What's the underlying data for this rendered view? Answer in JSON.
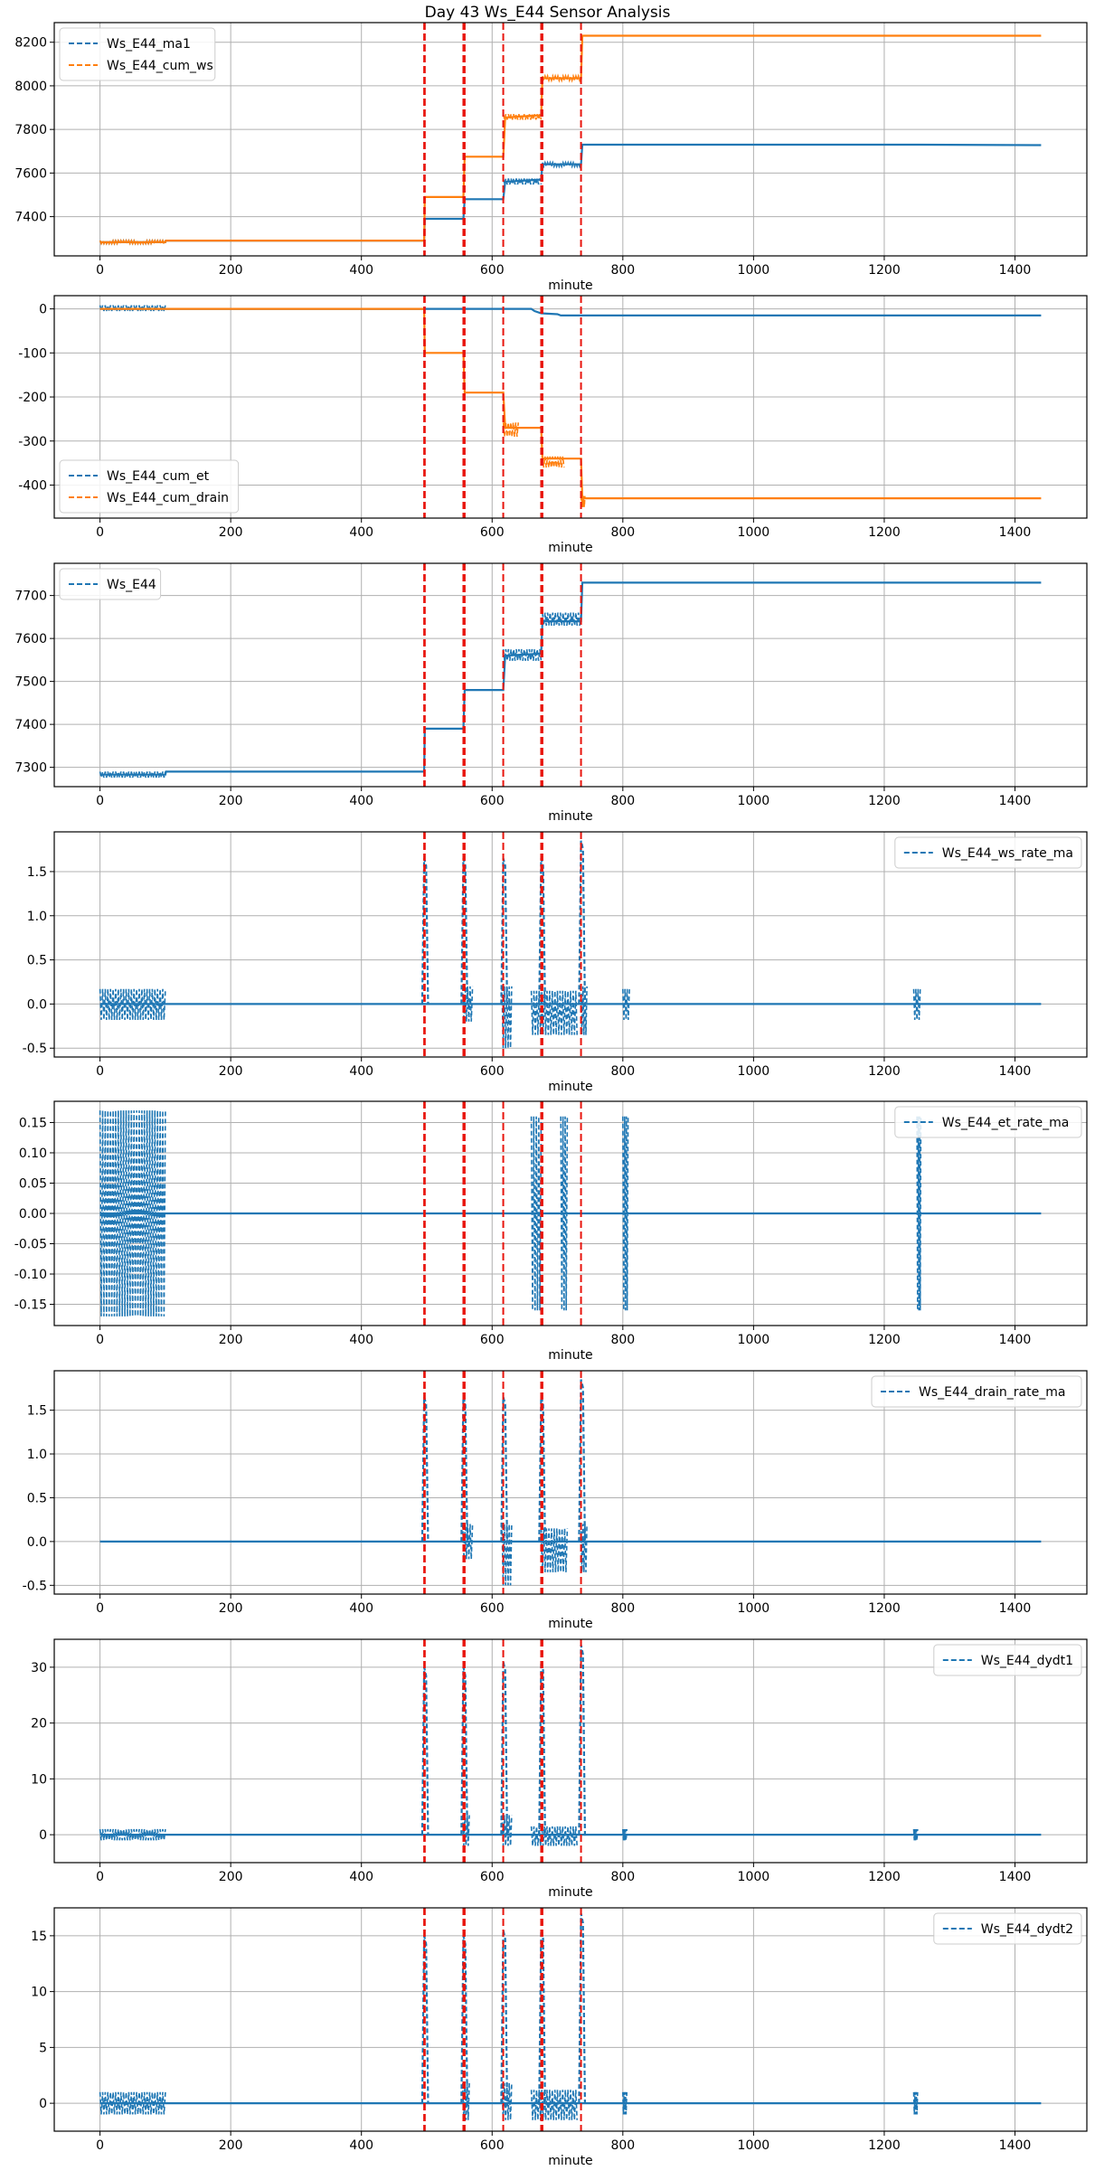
{
  "figure": {
    "title": "Day 43 Ws_E44 Sensor Analysis"
  },
  "colors": {
    "blue": "#1f77b4",
    "orange": "#ff7f0e",
    "event_red": "#e8140c",
    "grid": "#b0b0b0"
  },
  "event_lines_minute": [
    496,
    497,
    556,
    558,
    617,
    675,
    677,
    736
  ],
  "chart_data": [
    {
      "type": "line",
      "xlabel": "minute",
      "xlim": [
        -70,
        1510
      ],
      "ylim": [
        7220,
        8290
      ],
      "yticks": [
        7400,
        7600,
        7800,
        8000,
        8200
      ],
      "xticks": [
        0,
        200,
        400,
        600,
        800,
        1000,
        1200,
        1400
      ],
      "grid": true,
      "legend_loc": "upper left",
      "series": [
        {
          "name": "Ws_E44_ma1",
          "color": "#1f77b4",
          "x": [
            0,
            100,
            101,
            496,
            497,
            556,
            558,
            617,
            620,
            675,
            677,
            736,
            738,
            800,
            1245,
            1440
          ],
          "y": [
            7283,
            7283,
            7290,
            7290,
            7390,
            7390,
            7480,
            7480,
            7560,
            7570,
            7640,
            7640,
            7730,
            7730,
            7730,
            7728
          ],
          "noise": [
            [
              0,
              100,
              7276,
              7290
            ],
            [
              617,
              675,
              7548,
              7575
            ],
            [
              677,
              736,
              7630,
              7648
            ]
          ]
        },
        {
          "name": "Ws_E44_cum_ws",
          "color": "#ff7f0e",
          "x": [
            0,
            100,
            101,
            496,
            497,
            556,
            558,
            617,
            620,
            675,
            677,
            736,
            738,
            1440
          ],
          "y": [
            7283,
            7283,
            7290,
            7290,
            7490,
            7490,
            7675,
            7675,
            7855,
            7865,
            8035,
            8035,
            8230,
            8230
          ],
          "noise": [
            [
              0,
              100,
              7276,
              7290
            ],
            [
              617,
              675,
              7845,
              7870
            ],
            [
              677,
              736,
              8025,
              8045
            ]
          ]
        }
      ]
    },
    {
      "type": "line",
      "xlabel": "minute",
      "xlim": [
        -70,
        1510
      ],
      "ylim": [
        -475,
        30
      ],
      "yticks": [
        0,
        -100,
        -200,
        -300,
        -400
      ],
      "xticks": [
        0,
        200,
        400,
        600,
        800,
        1000,
        1200,
        1400
      ],
      "grid": true,
      "legend_loc": "lower left",
      "series": [
        {
          "name": "Ws_E44_cum_et",
          "color": "#1f77b4",
          "x": [
            0,
            100,
            101,
            660,
            665,
            675,
            700,
            705,
            736,
            740,
            1440
          ],
          "y": [
            0,
            0,
            0,
            0,
            -5,
            -10,
            -12,
            -15,
            -15,
            -15,
            -15
          ],
          "noise": [
            [
              0,
              100,
              -5,
              8
            ]
          ]
        },
        {
          "name": "Ws_E44_cum_drain",
          "color": "#ff7f0e",
          "x": [
            0,
            496,
            497,
            556,
            558,
            617,
            620,
            675,
            677,
            736,
            738,
            1440
          ],
          "y": [
            0,
            0,
            -100,
            -100,
            -190,
            -190,
            -270,
            -270,
            -340,
            -340,
            -430,
            -430
          ],
          "noise": [
            [
              617,
              640,
              -290,
              -258
            ],
            [
              677,
              710,
              -360,
              -335
            ],
            [
              736,
              742,
              -450,
              -425
            ]
          ]
        }
      ]
    },
    {
      "type": "line",
      "xlabel": "minute",
      "xlim": [
        -70,
        1510
      ],
      "ylim": [
        7255,
        7775
      ],
      "yticks": [
        7300,
        7400,
        7500,
        7600,
        7700
      ],
      "xticks": [
        0,
        200,
        400,
        600,
        800,
        1000,
        1200,
        1400
      ],
      "grid": true,
      "legend_loc": "upper left",
      "series": [
        {
          "name": "Ws_E44",
          "color": "#1f77b4",
          "x": [
            0,
            100,
            101,
            496,
            497,
            556,
            558,
            617,
            620,
            675,
            677,
            736,
            738,
            1440
          ],
          "y": [
            7283,
            7283,
            7290,
            7290,
            7390,
            7390,
            7480,
            7480,
            7560,
            7565,
            7640,
            7640,
            7730,
            7730
          ],
          "noise": [
            [
              0,
              100,
              7276,
              7290
            ],
            [
              617,
              675,
              7548,
              7575
            ],
            [
              677,
              736,
              7630,
              7660
            ]
          ]
        }
      ]
    },
    {
      "type": "line",
      "xlabel": "minute",
      "xlim": [
        -70,
        1510
      ],
      "ylim": [
        -0.6,
        1.95
      ],
      "yticks": [
        -0.5,
        0.0,
        0.5,
        1.0,
        1.5
      ],
      "xticks": [
        0,
        200,
        400,
        600,
        800,
        1000,
        1200,
        1400
      ],
      "grid": true,
      "legend_loc": "upper right",
      "series": [
        {
          "name": "Ws_E44_ws_rate_ma",
          "color": "#1f77b4",
          "x": [
            0,
            1440
          ],
          "y": [
            0,
            0
          ],
          "spikes": [
            [
              497,
              1.65
            ],
            [
              557,
              1.65
            ],
            [
              618,
              1.65
            ],
            [
              676,
              1.65
            ],
            [
              737,
              1.85
            ]
          ],
          "noise": [
            [
              0,
              100,
              -0.18,
              0.17
            ],
            [
              555,
              570,
              -0.2,
              0.2
            ],
            [
              615,
              630,
              -0.5,
              0.2
            ],
            [
              660,
              730,
              -0.35,
              0.15
            ],
            [
              736,
              745,
              -0.35,
              0.2
            ],
            [
              800,
              810,
              -0.18,
              0.17
            ],
            [
              1245,
              1255,
              -0.18,
              0.17
            ]
          ]
        }
      ]
    },
    {
      "type": "line",
      "xlabel": "minute",
      "xlim": [
        -70,
        1510
      ],
      "ylim": [
        -0.185,
        0.185
      ],
      "yticks": [
        -0.15,
        -0.1,
        -0.05,
        0.0,
        0.05,
        0.1,
        0.15
      ],
      "xticks": [
        0,
        200,
        400,
        600,
        800,
        1000,
        1200,
        1400
      ],
      "grid": true,
      "legend_loc": "upper right",
      "series": [
        {
          "name": "Ws_E44_et_rate_ma",
          "color": "#1f77b4",
          "x": [
            0,
            1440
          ],
          "y": [
            0,
            0
          ],
          "noise": [
            [
              0,
              100,
              -0.17,
              0.17
            ],
            [
              660,
              675,
              -0.16,
              0.16
            ],
            [
              705,
              715,
              -0.16,
              0.16
            ],
            [
              800,
              808,
              -0.16,
              0.16
            ],
            [
              1250,
              1256,
              -0.16,
              0.16
            ]
          ]
        }
      ]
    },
    {
      "type": "line",
      "xlabel": "minute",
      "xlim": [
        -70,
        1510
      ],
      "ylim": [
        -0.6,
        1.95
      ],
      "yticks": [
        -0.5,
        0.0,
        0.5,
        1.0,
        1.5
      ],
      "xticks": [
        0,
        200,
        400,
        600,
        800,
        1000,
        1200,
        1400
      ],
      "grid": true,
      "legend_loc": "upper right",
      "series": [
        {
          "name": "Ws_E44_drain_rate_ma",
          "color": "#1f77b4",
          "x": [
            0,
            1440
          ],
          "y": [
            0,
            0
          ],
          "spikes": [
            [
              497,
              1.65
            ],
            [
              557,
              1.65
            ],
            [
              618,
              1.65
            ],
            [
              676,
              1.65
            ],
            [
              737,
              1.85
            ]
          ],
          "noise": [
            [
              555,
              570,
              -0.2,
              0.2
            ],
            [
              615,
              630,
              -0.5,
              0.2
            ],
            [
              675,
              715,
              -0.35,
              0.15
            ],
            [
              736,
              745,
              -0.35,
              0.2
            ]
          ]
        }
      ]
    },
    {
      "type": "line",
      "xlabel": "minute",
      "xlim": [
        -70,
        1510
      ],
      "ylim": [
        -5,
        35
      ],
      "yticks": [
        0,
        10,
        20,
        30
      ],
      "xticks": [
        0,
        200,
        400,
        600,
        800,
        1000,
        1200,
        1400
      ],
      "grid": true,
      "legend_loc": "upper right",
      "series": [
        {
          "name": "Ws_E44_dydt1",
          "color": "#1f77b4",
          "x": [
            0,
            1440
          ],
          "y": [
            0,
            0
          ],
          "spikes": [
            [
              497,
              30
            ],
            [
              557,
              30
            ],
            [
              618,
              31
            ],
            [
              676,
              31
            ],
            [
              737,
              34
            ]
          ],
          "noise": [
            [
              0,
              100,
              -1,
              1
            ],
            [
              555,
              565,
              -2,
              3.5
            ],
            [
              615,
              630,
              -2,
              3.5
            ],
            [
              660,
              730,
              -2,
              1.5
            ],
            [
              800,
              806,
              -1,
              1
            ],
            [
              1245,
              1251,
              -1,
              1
            ]
          ]
        }
      ]
    },
    {
      "type": "line",
      "xlabel": "minute",
      "xlim": [
        -70,
        1510
      ],
      "ylim": [
        -2.5,
        17.5
      ],
      "yticks": [
        0,
        5,
        10,
        15
      ],
      "xticks": [
        0,
        200,
        400,
        600,
        800,
        1000,
        1200,
        1400
      ],
      "grid": true,
      "legend_loc": "upper right",
      "series": [
        {
          "name": "Ws_E44_dydt2",
          "color": "#1f77b4",
          "x": [
            0,
            1440
          ],
          "y": [
            0,
            0
          ],
          "spikes": [
            [
              497,
              15
            ],
            [
              557,
              15
            ],
            [
              618,
              15.5
            ],
            [
              676,
              15.5
            ],
            [
              737,
              17
            ]
          ],
          "noise": [
            [
              0,
              100,
              -1,
              1
            ],
            [
              555,
              565,
              -1.5,
              1.8
            ],
            [
              615,
              630,
              -1.5,
              1.8
            ],
            [
              660,
              730,
              -1.5,
              1.2
            ],
            [
              800,
              806,
              -1,
              1
            ],
            [
              1245,
              1251,
              -1,
              1
            ]
          ]
        }
      ]
    }
  ]
}
